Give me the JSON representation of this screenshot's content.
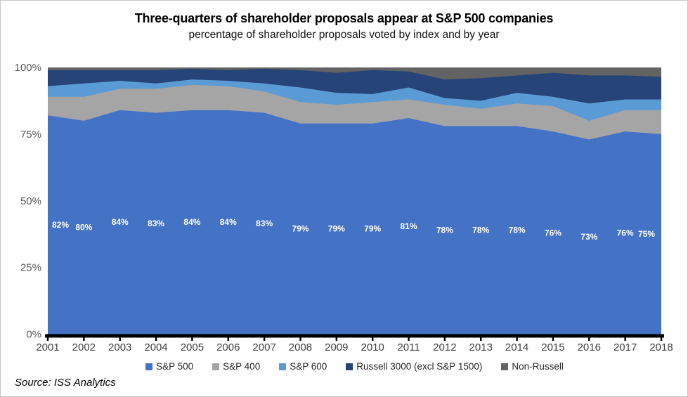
{
  "source": "Source: ISS Analytics",
  "chart_data": {
    "type": "area",
    "stacked": true,
    "title": "Three-quarters of shareholder proposals appear at S&P 500 companies",
    "subtitle": "percentage of shareholder proposals voted by index and by year",
    "x": [
      "2001",
      "2002",
      "2003",
      "2004",
      "2005",
      "2006",
      "2007",
      "2008",
      "2009",
      "2010",
      "2011",
      "2012",
      "2013",
      "2014",
      "2015",
      "2016",
      "2017",
      "2018"
    ],
    "ylim": [
      0,
      100
    ],
    "y_ticks": [
      {
        "value": 0,
        "label": "0%"
      },
      {
        "value": 25,
        "label": "25%"
      },
      {
        "value": 50,
        "label": "50%"
      },
      {
        "value": 75,
        "label": "75%"
      },
      {
        "value": 100,
        "label": "100%"
      }
    ],
    "grid": false,
    "legend_position": "bottom",
    "data_labels": {
      "series_index": 0,
      "suffix": "%",
      "color": "#FFFFFF"
    },
    "series": [
      {
        "name": "S&P 500",
        "color": "#4472C4",
        "values": [
          82,
          80,
          84,
          83,
          84,
          84,
          83,
          79,
          79,
          79,
          81,
          78,
          78,
          78,
          76,
          73,
          76,
          75
        ]
      },
      {
        "name": "S&P 400",
        "color": "#A5A5A5",
        "values": [
          7,
          9,
          8,
          9,
          9.5,
          9,
          8,
          8,
          7,
          8,
          7,
          8,
          6.5,
          8.5,
          9.5,
          7,
          8,
          9
        ]
      },
      {
        "name": "S&P 600",
        "color": "#5B9BD5",
        "values": [
          4,
          5,
          3,
          2,
          2,
          2,
          3,
          5.5,
          4.5,
          3,
          4.5,
          2.5,
          3,
          4,
          3.5,
          6.5,
          4,
          4
        ]
      },
      {
        "name": "Russell 3000 (excl S&P 1500)",
        "color": "#264478",
        "values": [
          6,
          5,
          4,
          5,
          4,
          4,
          5.5,
          6.5,
          7.5,
          9,
          6,
          7,
          8.5,
          6.5,
          9,
          10.5,
          9,
          8.5
        ]
      },
      {
        "name": "Non-Russell",
        "color": "#636363",
        "values": [
          1,
          1,
          1,
          1,
          0.5,
          1,
          0.5,
          1,
          2,
          1,
          1.5,
          4.5,
          4,
          3,
          2,
          3,
          3,
          3.5
        ]
      }
    ],
    "axis_color": "#000000",
    "y_tick_label_color": "#595959",
    "x_tick_label_color": "#404040"
  }
}
